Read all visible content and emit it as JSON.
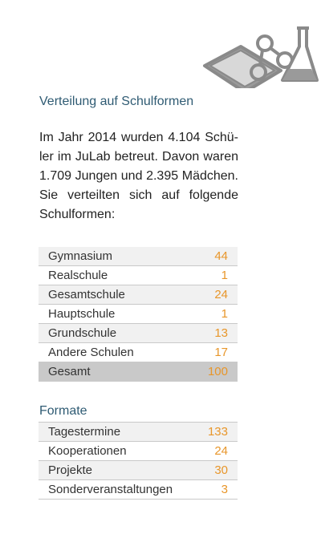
{
  "heading": "Verteilung auf Schulformen",
  "paragraph": [
    "Im Jahr 2014 wurden 4.104 Schü-",
    "ler im JuLab betreut. Davon waren",
    "1.709 Jungen und 2.395 Mädchen.",
    "Sie verteilten sich auf folgende",
    "Schulformen:"
  ],
  "table1": {
    "rows": [
      [
        "Gymnasium",
        44
      ],
      [
        "Realschule",
        1
      ],
      [
        "Gesamtschule",
        24
      ],
      [
        "Hauptschule",
        1
      ],
      [
        "Grundschule",
        13
      ],
      [
        "Andere Schulen",
        17
      ]
    ],
    "total": [
      "Gesamt",
      100
    ]
  },
  "formate": {
    "title": "Formate",
    "rows": [
      [
        "Tagestermine",
        133
      ],
      [
        "Kooperationen",
        24
      ],
      [
        "Projekte",
        30
      ],
      [
        "Sonderveranstaltungen",
        3
      ]
    ]
  }
}
